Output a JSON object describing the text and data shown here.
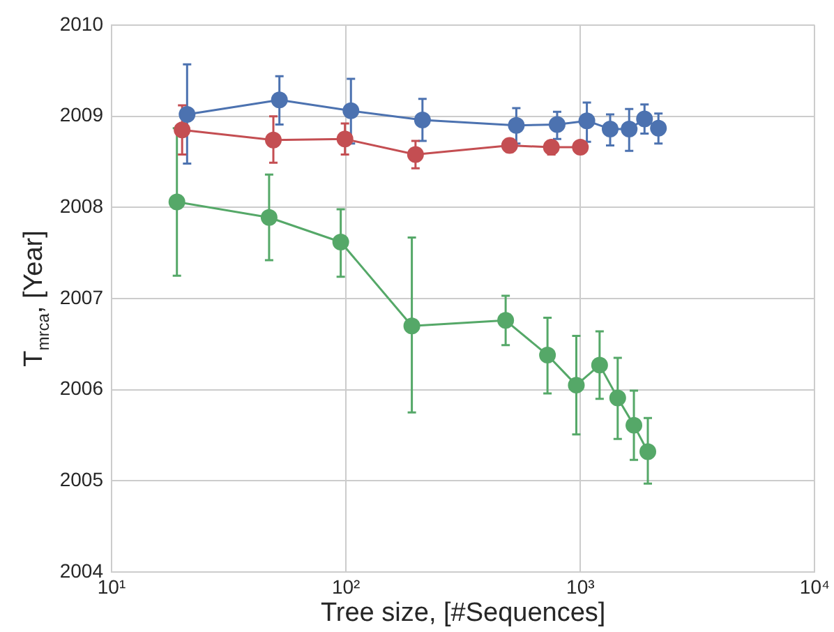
{
  "chart_data": {
    "type": "line",
    "xlabel": "Tree size, [#Sequences]",
    "ylabel": "T$_{mrca}$, [Year]",
    "log": "x",
    "xlim": [
      10,
      10000
    ],
    "ylim": [
      2004,
      2010
    ],
    "xticks": [
      {
        "value": 10,
        "label": "10¹"
      },
      {
        "value": 100,
        "label": "10²"
      },
      {
        "value": 1000,
        "label": "10³"
      },
      {
        "value": 10000,
        "label": "10⁴"
      }
    ],
    "yticks": [
      2004,
      2005,
      2006,
      2007,
      2008,
      2009,
      2010
    ],
    "grid": true,
    "marker": "circle",
    "line_style": "solid",
    "series": [
      {
        "color": "#4c72b0",
        "x": [
          21,
          52,
          105,
          212,
          533,
          796,
          1066,
          1340,
          1615,
          1878,
          2153
        ],
        "values": [
          2009.02,
          2009.18,
          2009.06,
          2008.96,
          2008.9,
          2008.91,
          2008.95,
          2008.86,
          2008.86,
          2008.97,
          2008.87
        ],
        "errors": [
          [
            2008.48,
            2009.57
          ],
          [
            2008.91,
            2009.44
          ],
          [
            2008.7,
            2009.41
          ],
          [
            2008.73,
            2009.19
          ],
          [
            2008.7,
            2009.09
          ],
          [
            2008.75,
            2009.05
          ],
          [
            2008.72,
            2009.15
          ],
          [
            2008.68,
            2009.02
          ],
          [
            2008.62,
            2009.08
          ],
          [
            2008.81,
            2009.13
          ],
          [
            2008.7,
            2009.03
          ]
        ]
      },
      {
        "color": "#55a868",
        "x": [
          19,
          47,
          95,
          191,
          480,
          724,
          961,
          1208,
          1443,
          1692,
          1940
        ],
        "values": [
          2008.06,
          2007.89,
          2007.62,
          2006.7,
          2006.76,
          2006.38,
          2006.05,
          2006.27,
          2005.91,
          2005.61,
          2005.32
        ],
        "errors": [
          [
            2007.25,
            2008.87
          ],
          [
            2007.42,
            2008.36
          ],
          [
            2007.24,
            2007.98
          ],
          [
            2005.75,
            2007.67
          ],
          [
            2006.49,
            2007.03
          ],
          [
            2005.96,
            2006.79
          ],
          [
            2005.51,
            2006.59
          ],
          [
            2005.9,
            2006.64
          ],
          [
            2005.46,
            2006.35
          ],
          [
            2005.23,
            2005.99
          ],
          [
            2004.97,
            2005.69
          ]
        ]
      },
      {
        "color": "#c44e52",
        "x": [
          20,
          49,
          99,
          198,
          499,
          752,
          1000
        ],
        "values": [
          2008.85,
          2008.74,
          2008.75,
          2008.58,
          2008.68,
          2008.66,
          2008.66
        ],
        "errors": [
          [
            2008.58,
            2009.12
          ],
          [
            2008.49,
            2009.0
          ],
          [
            2008.58,
            2008.92
          ],
          [
            2008.43,
            2008.73
          ],
          [
            2008.61,
            2008.75
          ],
          [
            2008.58,
            2008.73
          ],
          null
        ]
      }
    ]
  }
}
